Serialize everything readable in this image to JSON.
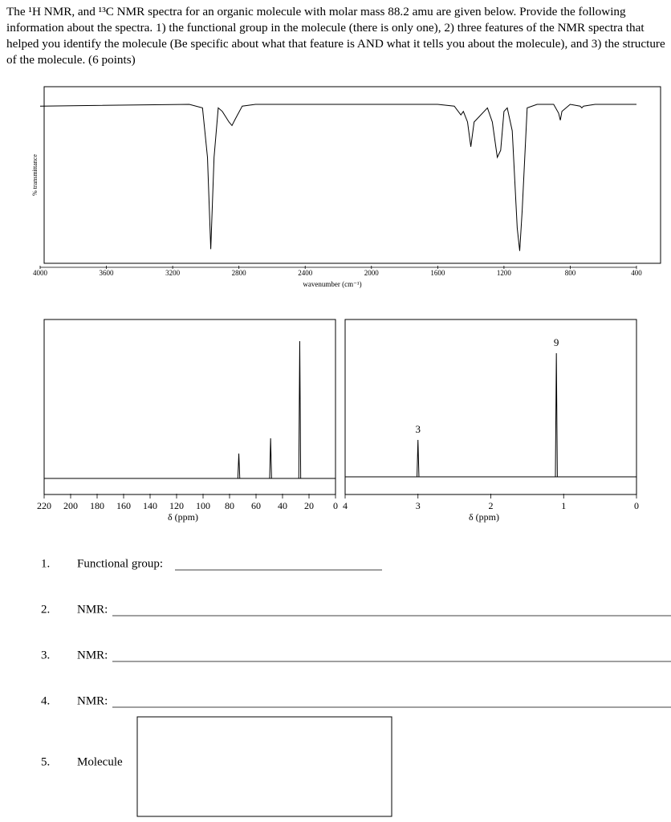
{
  "question": "The ¹H NMR, and ¹³C NMR spectra for an organic molecule with molar mass 88.2 amu are given below.  Provide the following information about the spectra. 1) the functional group in the molecule (there is only one), 2) three features of the NMR spectra that helped you identify the molecule (Be specific about what that feature is AND what it tells you about the molecule), and 3) the structure of the molecule. (6 points)",
  "chart_data": [
    {
      "type": "line",
      "xlabel": "wavenumber (cm⁻¹)",
      "ylabel": "% transmittance",
      "color": "#000000",
      "x": [
        4000,
        3100,
        3020,
        2990,
        2970,
        2950,
        2925,
        2900,
        2860,
        2842,
        2820,
        2780,
        2700,
        1600,
        1500,
        1460,
        1445,
        1420,
        1400,
        1380,
        1300,
        1270,
        1240,
        1220,
        1200,
        1180,
        1150,
        1120,
        1105,
        1090,
        1060,
        1000,
        900,
        870,
        860,
        850,
        800,
        740,
        730,
        720,
        650,
        400
      ],
      "values": [
        89,
        90,
        88,
        60,
        8,
        60,
        88,
        86,
        80,
        78,
        82,
        89,
        90,
        90,
        89,
        84,
        86,
        80,
        66,
        80,
        88,
        80,
        60,
        64,
        86,
        88,
        75,
        20,
        7,
        30,
        88,
        90,
        90,
        85,
        81,
        86,
        90,
        89,
        88,
        89,
        90,
        90
      ],
      "xlim": [
        4000,
        400
      ],
      "ylim": [
        0,
        100
      ],
      "xticks": [
        4000,
        3600,
        3200,
        2800,
        2400,
        2000,
        1600,
        1200,
        800,
        400
      ]
    },
    {
      "type": "spectrum",
      "xlabel": "δ (ppm)",
      "color": "#000000",
      "x": [
        73,
        49,
        27
      ],
      "values": [
        31,
        50,
        171
      ],
      "xlim": [
        220,
        0
      ],
      "ylim": [
        -20,
        198
      ],
      "xticks": [
        220,
        200,
        180,
        160,
        140,
        120,
        100,
        80,
        60,
        40,
        20,
        0
      ]
    },
    {
      "type": "spectrum",
      "xlabel": "δ (ppm)",
      "color": "#000000",
      "x": [
        3.0,
        1.1
      ],
      "values": [
        46,
        154
      ],
      "integrations": [
        3,
        9
      ],
      "xlim": [
        4,
        0
      ],
      "ylim": [
        -22,
        196
      ],
      "xticks": [
        4,
        3,
        2,
        1,
        0
      ]
    }
  ],
  "items": [
    {
      "number": "1.",
      "label": "Functional group:"
    },
    {
      "number": "2.",
      "label": "NMR:"
    },
    {
      "number": "3.",
      "label": "NMR:"
    },
    {
      "number": "4.",
      "label": "NMR:"
    },
    {
      "number": "5.",
      "label": "Molecule"
    }
  ]
}
